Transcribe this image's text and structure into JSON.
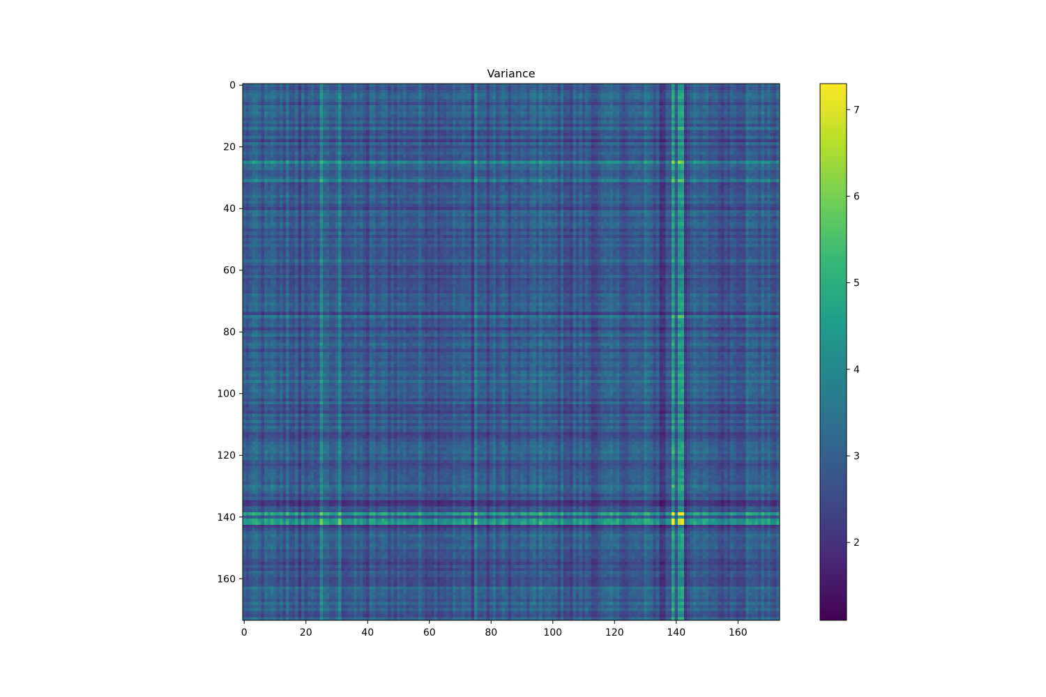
{
  "chart_data": {
    "type": "heatmap",
    "title": "Variance",
    "xlabel": "",
    "ylabel": "",
    "n_rows": 174,
    "n_cols": 174,
    "x_range": [
      -0.5,
      173.5
    ],
    "y_range": [
      -0.5,
      173.5
    ],
    "y_inverted": true,
    "x_ticks": [
      0,
      20,
      40,
      60,
      80,
      100,
      120,
      140,
      160
    ],
    "y_ticks": [
      0,
      20,
      40,
      60,
      80,
      100,
      120,
      140,
      160
    ],
    "x_tick_labels": [
      "0",
      "20",
      "40",
      "60",
      "80",
      "100",
      "120",
      "140",
      "160"
    ],
    "y_tick_labels": [
      "0",
      "20",
      "40",
      "60",
      "80",
      "100",
      "120",
      "140",
      "160"
    ],
    "colormap": "viridis",
    "color_range": [
      1.1,
      7.3
    ],
    "colorbar": {
      "ticks": [
        2,
        3,
        4,
        5,
        6,
        7
      ],
      "tick_labels": [
        "2",
        "3",
        "4",
        "5",
        "6",
        "7"
      ],
      "placement": "right"
    },
    "structure": "outer product of a per-index profile",
    "profile_base": 1.68,
    "profile_bright": [
      {
        "index": 139,
        "value": 2.7
      },
      {
        "index": 141,
        "value": 2.6
      },
      {
        "index": 142,
        "value": 2.65
      },
      {
        "index": 25,
        "value": 2.35
      },
      {
        "index": 31,
        "value": 2.2
      },
      {
        "index": 75,
        "value": 2.1
      },
      {
        "index": 96,
        "value": 2.0
      },
      {
        "index": 130,
        "value": 2.0
      },
      {
        "index": 14,
        "value": 1.95
      },
      {
        "index": 4,
        "value": 1.9
      },
      {
        "index": 9,
        "value": 1.9
      },
      {
        "index": 163,
        "value": 1.95
      },
      {
        "index": 168,
        "value": 1.9
      }
    ],
    "profile_dark": [
      {
        "index": 135,
        "value": 1.2
      },
      {
        "index": 136,
        "value": 1.25
      },
      {
        "index": 143,
        "value": 1.25
      },
      {
        "index": 74,
        "value": 1.3
      },
      {
        "index": 18,
        "value": 1.35
      },
      {
        "index": 40,
        "value": 1.4
      },
      {
        "index": 79,
        "value": 1.4
      },
      {
        "index": 106,
        "value": 1.4
      },
      {
        "index": 113,
        "value": 1.4
      },
      {
        "index": 155,
        "value": 1.4
      }
    ],
    "colors": {
      "viridis": [
        "#440154",
        "#482878",
        "#3e4989",
        "#31688e",
        "#26828e",
        "#1f9e89",
        "#35b779",
        "#6ece58",
        "#b5de2b",
        "#fde725"
      ],
      "frame": "#000000"
    }
  }
}
